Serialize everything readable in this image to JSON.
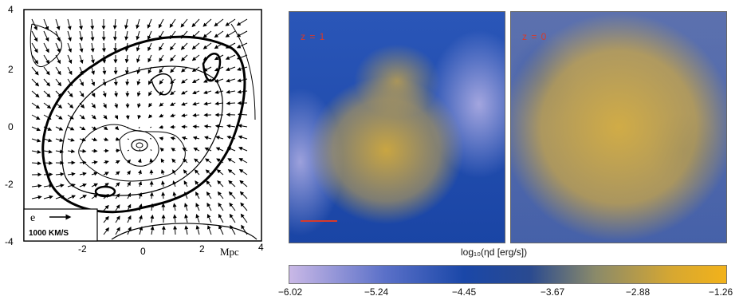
{
  "left_plot": {
    "y_ticks": [
      "4",
      "2",
      "0",
      "-2",
      "-4"
    ],
    "x_ticks": [
      "-2",
      "0",
      "2",
      "4"
    ],
    "x_unit": "Mpc",
    "legend_letter": "e",
    "legend_scale": "1000 KM/S"
  },
  "panels": [
    {
      "label": "z = 1"
    },
    {
      "label": "z = 0"
    }
  ],
  "colorbar": {
    "label": "log₁₀(ηd [erg/s])",
    "ticks": [
      "−6.02",
      "−5.24",
      "−4.45",
      "−3.67",
      "−2.88",
      "−1.26"
    ],
    "color_low": "#c9b8e6",
    "color_mid": "#1a47a8",
    "color_high": "#f2b21a"
  }
}
